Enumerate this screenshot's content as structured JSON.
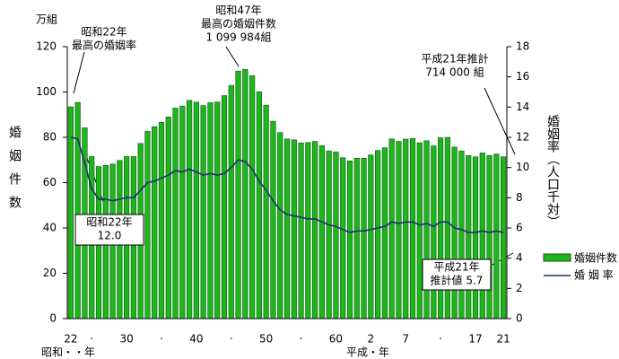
{
  "chart_data": {
    "type": "bar-line",
    "y_unit": "万組",
    "y_title": "婚姻件数",
    "y2_title": "婚姻率（人口千対）",
    "x_era_labels": [
      "昭和・・年",
      "平成・年"
    ],
    "categories": [
      "22",
      null,
      null,
      "·",
      null,
      null,
      null,
      null,
      "30",
      null,
      null,
      null,
      null,
      "·",
      null,
      null,
      null,
      null,
      "40",
      null,
      null,
      null,
      null,
      "·",
      null,
      null,
      null,
      null,
      "50",
      null,
      null,
      null,
      null,
      "·",
      null,
      null,
      null,
      null,
      "60",
      null,
      null,
      null,
      null,
      "2",
      null,
      null,
      null,
      null,
      "7",
      null,
      null,
      null,
      null,
      "·",
      null,
      null,
      null,
      null,
      "17",
      null,
      null,
      null,
      "21"
    ],
    "series": [
      {
        "name": "婚姻件数",
        "type": "bar",
        "color": "#1fb51f",
        "values": [
          93.4,
          95.4,
          84.2,
          71.5,
          67.1,
          67.6,
          68.2,
          69.8,
          71.5,
          71.5,
          77.3,
          82.6,
          84.7,
          86.6,
          89.0,
          92.9,
          93.8,
          96.3,
          95.5,
          94.0,
          95.3,
          95.6,
          98.4,
          102.9,
          109.2,
          110.0,
          107.2,
          100.1,
          94.2,
          87.1,
          82.1,
          79.3,
          78.9,
          77.5,
          77.7,
          78.2,
          76.3,
          74.0,
          73.6,
          71.0,
          69.6,
          70.8,
          70.8,
          72.2,
          74.2,
          75.4,
          79.3,
          78.2,
          79.2,
          79.5,
          77.6,
          78.5,
          76.2,
          79.8,
          80.0,
          75.7,
          74.0,
          72.0,
          71.4,
          73.1,
          72.0,
          72.6,
          71.4
        ]
      },
      {
        "name": "婚 姻 率",
        "type": "line",
        "axis": "y2",
        "color": "#1f2f6f",
        "values": [
          12.0,
          11.9,
          10.3,
          8.6,
          7.9,
          7.9,
          7.8,
          7.9,
          8.0,
          8.0,
          8.5,
          9.0,
          9.1,
          9.3,
          9.5,
          9.8,
          9.7,
          9.9,
          9.7,
          9.5,
          9.6,
          9.5,
          9.6,
          10.0,
          10.5,
          10.4,
          9.9,
          9.1,
          8.5,
          7.8,
          7.2,
          6.9,
          6.8,
          6.7,
          6.6,
          6.6,
          6.4,
          6.2,
          6.1,
          5.9,
          5.7,
          5.8,
          5.8,
          5.9,
          6.0,
          6.1,
          6.4,
          6.3,
          6.4,
          6.4,
          6.2,
          6.3,
          6.1,
          6.4,
          6.4,
          6.0,
          5.9,
          5.7,
          5.7,
          5.8,
          5.7,
          5.8,
          5.7
        ]
      }
    ],
    "ylim": [
      0,
      120
    ],
    "yticks": [
      0,
      20,
      40,
      60,
      80,
      100,
      120
    ],
    "y2lim": [
      0,
      18
    ],
    "y2ticks": [
      0,
      2,
      4,
      6,
      8,
      10,
      12,
      14,
      16,
      18
    ],
    "annotations": [
      {
        "lines": [
          "昭和22年",
          "最高の婚姻率"
        ]
      },
      {
        "lines": [
          "昭和47年",
          "最高の婚姻件数",
          "1 099 984組"
        ]
      },
      {
        "lines": [
          "平成21年推計",
          "714 000 組"
        ]
      },
      {
        "lines": [
          "昭和22年",
          "12.0"
        ],
        "boxed": true
      },
      {
        "lines": [
          "平成21年",
          "推計値 5.7"
        ],
        "boxed": true
      }
    ]
  }
}
